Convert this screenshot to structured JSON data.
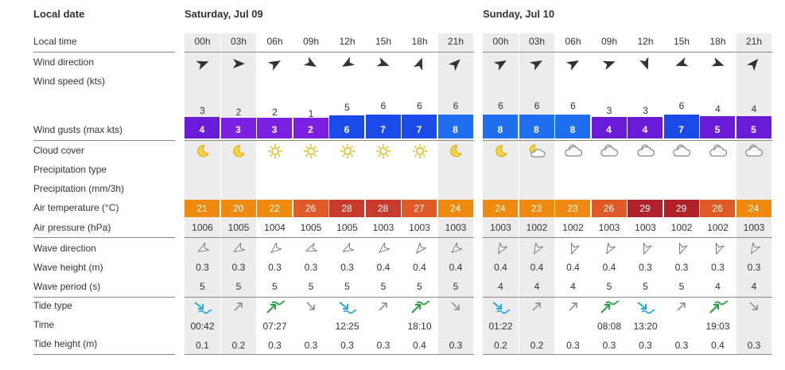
{
  "header": {
    "local_date_label": "Local date",
    "day1": "Saturday, Jul 09",
    "day2": "Sunday, Jul 10"
  },
  "row_labels": {
    "local_time": "Local time",
    "wind_direction": "Wind direction",
    "wind_speed": "Wind speed  (kts)",
    "wind_gusts": "Wind gusts  (max kts)",
    "cloud_cover": "Cloud cover",
    "precip_type": "Precipitation type",
    "precipitation": "Precipitation  (mm/3h)",
    "air_temp": "Air temperature  (°C)",
    "air_pressure": "Air pressure  (hPa)",
    "wave_direction": "Wave direction",
    "wave_height": "Wave height  (m)",
    "wave_period": "Wave period  (s)",
    "tide_type": "Tide type",
    "time": "Time",
    "tide_height": "Tide height  (m)"
  },
  "colors": {
    "night_bg": "#ececec",
    "gust_purple": "#6a1bd8",
    "gust_violet": "#7b1fe0",
    "gust_blue": "#1a4be8",
    "gust_lightblue": "#1e6ff0",
    "temp_orange": "#ee8a10",
    "temp_redorange": "#e05a28",
    "temp_red": "#c83a2c",
    "temp_darkred": "#b0212a",
    "tide_icon": "#2aa8d8",
    "tide_low_icon": "#2aa8d8",
    "tide_high_icon": "#2aa040"
  },
  "days": [
    {
      "hours": [
        "00h",
        "03h",
        "06h",
        "09h",
        "12h",
        "15h",
        "18h",
        "21h"
      ],
      "wind_dir_deg": [
        70,
        90,
        60,
        120,
        240,
        110,
        20,
        45
      ],
      "wind_speed": [
        "3",
        "2",
        "2",
        "1",
        "5",
        "6",
        "6",
        "6"
      ],
      "wind_gusts": [
        "4",
        "3",
        "3",
        "2",
        "6",
        "7",
        "7",
        "8"
      ],
      "cloud": [
        "moon",
        "moon",
        "sun",
        "sun",
        "sun",
        "sun",
        "sun",
        "moon"
      ],
      "air_temp": [
        "21",
        "20",
        "22",
        "26",
        "28",
        "28",
        "27",
        "24"
      ],
      "air_pressure": [
        "1006",
        "1005",
        "1004",
        "1005",
        "1005",
        "1003",
        "1003",
        "1003"
      ],
      "wave_dir_deg": [
        240,
        240,
        230,
        250,
        240,
        230,
        220,
        230
      ],
      "wave_height": [
        "0.3",
        "0.3",
        "0.3",
        "0.3",
        "0.3",
        "0.4",
        "0.4",
        "0.4"
      ],
      "wave_period": [
        "5",
        "5",
        "5",
        "5",
        "5",
        "5",
        "5",
        "5"
      ],
      "tide_type": [
        "low",
        "rising",
        "high",
        "falling",
        "low",
        "rising",
        "high",
        "falling"
      ],
      "tide_time": [
        "00:42",
        "",
        "07:27",
        "",
        "12:25",
        "",
        "18:10",
        ""
      ],
      "tide_height": [
        "0.1",
        "0.2",
        "0.3",
        "0.3",
        "0.3",
        "0.3",
        "0.4",
        "0.3"
      ]
    },
    {
      "hours": [
        "00h",
        "03h",
        "06h",
        "09h",
        "12h",
        "15h",
        "18h",
        "21h"
      ],
      "wind_dir_deg": [
        60,
        60,
        60,
        70,
        160,
        250,
        110,
        40
      ],
      "wind_speed": [
        "6",
        "6",
        "6",
        "3",
        "3",
        "6",
        "4",
        "4"
      ],
      "wind_gusts": [
        "8",
        "8",
        "8",
        "4",
        "4",
        "7",
        "5",
        "5"
      ],
      "cloud": [
        "moon",
        "cloud-moon",
        "cloud",
        "cloud",
        "cloud",
        "cloud",
        "cloud",
        "cloud"
      ],
      "air_temp": [
        "24",
        "23",
        "23",
        "26",
        "29",
        "29",
        "26",
        "24"
      ],
      "air_pressure": [
        "1003",
        "1002",
        "1002",
        "1003",
        "1003",
        "1002",
        "1002",
        "1003"
      ],
      "wave_dir_deg": [
        210,
        210,
        200,
        210,
        200,
        200,
        200,
        210
      ],
      "wave_height": [
        "0.4",
        "0.4",
        "0.4",
        "0.4",
        "0.3",
        "0.3",
        "0.3",
        "0.3"
      ],
      "wave_period": [
        "4",
        "4",
        "4",
        "5",
        "5",
        "5",
        "4",
        "4"
      ],
      "tide_type": [
        "low",
        "rising",
        "rising",
        "high",
        "low",
        "rising",
        "high",
        "falling"
      ],
      "tide_time": [
        "01:22",
        "",
        "",
        "08:08",
        "13:20",
        "",
        "19:03",
        ""
      ],
      "tide_height": [
        "0.2",
        "0.2",
        "0.3",
        "0.3",
        "0.3",
        "0.3",
        "0.4",
        "0.3"
      ]
    }
  ]
}
